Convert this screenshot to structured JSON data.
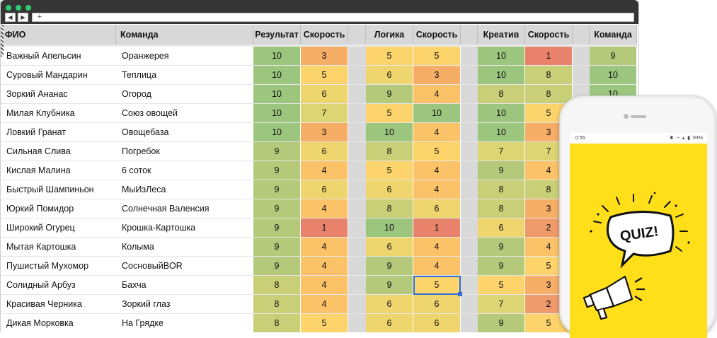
{
  "browser": {
    "nav_back": "◀",
    "nav_forward": "▶",
    "new_tab": "+"
  },
  "columns": [
    "ФИО",
    "Команда",
    "Результат",
    "Скорость",
    "",
    "Логика",
    "Скорость",
    "",
    "Креатив",
    "Скорость",
    "",
    "Команда"
  ],
  "rows": [
    {
      "name": "Важный Апельсин",
      "team": "Оранжерея",
      "vals": [
        "10",
        "3",
        "5",
        "5",
        "10",
        "1",
        "9"
      ]
    },
    {
      "name": "Суровый Мандарин",
      "team": "Теплица",
      "vals": [
        "10",
        "5",
        "6",
        "3",
        "10",
        "8",
        "10"
      ]
    },
    {
      "name": "Зоркий Ананас",
      "team": "Огород",
      "vals": [
        "10",
        "6",
        "9",
        "4",
        "8",
        "8",
        "10"
      ]
    },
    {
      "name": "Милая Клубника",
      "team": "Союз овощей",
      "vals": [
        "10",
        "7",
        "5",
        "10",
        "10",
        "5",
        ""
      ]
    },
    {
      "name": "Ловкий Гранат",
      "team": "Овощебаза",
      "vals": [
        "10",
        "3",
        "10",
        "4",
        "10",
        "3",
        ""
      ]
    },
    {
      "name": "Сильная Слива",
      "team": "Погребок",
      "vals": [
        "9",
        "6",
        "8",
        "5",
        "7",
        "7",
        ""
      ]
    },
    {
      "name": "Кислая Малина",
      "team": "6 соток",
      "vals": [
        "9",
        "4",
        "5",
        "4",
        "9",
        "4",
        ""
      ]
    },
    {
      "name": "Быстрый Шампиньон",
      "team": "МыИзЛеса",
      "vals": [
        "9",
        "6",
        "6",
        "4",
        "8",
        "8",
        ""
      ]
    },
    {
      "name": "Юркий Помидор",
      "team": "Солнечная Валенсия",
      "vals": [
        "9",
        "4",
        "8",
        "6",
        "8",
        "3",
        ""
      ]
    },
    {
      "name": "Широкий Огурец",
      "team": "Крошка-Картошка",
      "vals": [
        "9",
        "1",
        "10",
        "1",
        "6",
        "2",
        ""
      ]
    },
    {
      "name": "Мытая Картошка",
      "team": "Колыма",
      "vals": [
        "9",
        "4",
        "6",
        "4",
        "9",
        "4",
        ""
      ]
    },
    {
      "name": "Пушистый Мухомор",
      "team": "СосновыйBOR",
      "vals": [
        "9",
        "4",
        "9",
        "4",
        "9",
        "5",
        ""
      ]
    },
    {
      "name": "Солидный Арбуз",
      "team": "Бахча",
      "vals": [
        "8",
        "4",
        "9",
        "5",
        "5",
        "3",
        ""
      ]
    },
    {
      "name": "Красивая Черника",
      "team": "Зоркий глаз",
      "vals": [
        "8",
        "4",
        "6",
        "6",
        "7",
        "2",
        ""
      ]
    },
    {
      "name": "Дикая Морковка",
      "team": "На Грядке",
      "vals": [
        "8",
        "5",
        "6",
        "6",
        "9",
        "5",
        ""
      ]
    }
  ],
  "palette": {
    "1": "#e8826b",
    "2": "#ef9a6a",
    "3": "#f6ad66",
    "4": "#fbc268",
    "5": "#fdd36b",
    "6": "#eed56d",
    "7": "#ddd473",
    "8": "#c8cf77",
    "9": "#b4c97a",
    "10": "#9cc57e"
  },
  "phone": {
    "time": "0:55",
    "battery": "93%",
    "quiz_label": "QUIZ!"
  }
}
